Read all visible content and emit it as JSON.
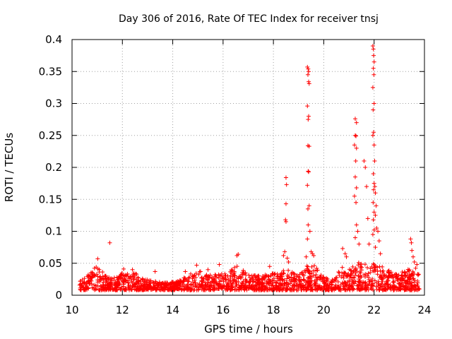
{
  "chart_data": {
    "type": "scatter",
    "title": "Day 306 of 2016, Rate Of TEC Index for receiver tnsj",
    "xlabel": "GPS time / hours",
    "ylabel": "ROTI / TECUs",
    "xlim": [
      10,
      24
    ],
    "ylim": [
      0,
      0.4
    ],
    "grid": true,
    "marker": "+",
    "series": [
      {
        "name": "ROTI",
        "color": "#ff0000",
        "points": [
          [
            11.5,
            0.082
          ],
          [
            11.02,
            0.057
          ],
          [
            12.05,
            0.041
          ],
          [
            12.4,
            0.04
          ],
          [
            13.3,
            0.037
          ],
          [
            14.5,
            0.037
          ],
          [
            14.95,
            0.047
          ],
          [
            15.4,
            0.04
          ],
          [
            15.85,
            0.048
          ],
          [
            16.6,
            0.064
          ],
          [
            16.55,
            0.062
          ],
          [
            17.85,
            0.045
          ],
          [
            18.5,
            0.184
          ],
          [
            18.52,
            0.173
          ],
          [
            18.5,
            0.143
          ],
          [
            18.48,
            0.118
          ],
          [
            18.5,
            0.115
          ],
          [
            18.45,
            0.068
          ],
          [
            18.4,
            0.062
          ],
          [
            18.55,
            0.058
          ],
          [
            18.6,
            0.052
          ],
          [
            19.35,
            0.357
          ],
          [
            19.38,
            0.354
          ],
          [
            19.4,
            0.35
          ],
          [
            19.37,
            0.345
          ],
          [
            19.4,
            0.334
          ],
          [
            19.42,
            0.331
          ],
          [
            19.35,
            0.296
          ],
          [
            19.4,
            0.28
          ],
          [
            19.38,
            0.275
          ],
          [
            19.37,
            0.234
          ],
          [
            19.42,
            0.233
          ],
          [
            19.38,
            0.194
          ],
          [
            19.4,
            0.193
          ],
          [
            19.35,
            0.172
          ],
          [
            19.42,
            0.14
          ],
          [
            19.37,
            0.135
          ],
          [
            19.38,
            0.11
          ],
          [
            19.45,
            0.1
          ],
          [
            19.35,
            0.088
          ],
          [
            19.5,
            0.068
          ],
          [
            19.55,
            0.065
          ],
          [
            19.3,
            0.06
          ],
          [
            19.6,
            0.062
          ],
          [
            20.75,
            0.073
          ],
          [
            20.85,
            0.065
          ],
          [
            20.9,
            0.06
          ],
          [
            21.25,
            0.276
          ],
          [
            21.3,
            0.27
          ],
          [
            21.25,
            0.25
          ],
          [
            21.28,
            0.249
          ],
          [
            21.22,
            0.235
          ],
          [
            21.3,
            0.23
          ],
          [
            21.27,
            0.21
          ],
          [
            21.25,
            0.185
          ],
          [
            21.3,
            0.168
          ],
          [
            21.22,
            0.155
          ],
          [
            21.28,
            0.145
          ],
          [
            21.3,
            0.11
          ],
          [
            21.35,
            0.1
          ],
          [
            21.25,
            0.09
          ],
          [
            21.4,
            0.08
          ],
          [
            21.6,
            0.21
          ],
          [
            21.65,
            0.2
          ],
          [
            21.7,
            0.17
          ],
          [
            21.75,
            0.12
          ],
          [
            21.8,
            0.08
          ],
          [
            21.95,
            0.39
          ],
          [
            21.97,
            0.385
          ],
          [
            21.98,
            0.375
          ],
          [
            22.0,
            0.365
          ],
          [
            21.97,
            0.355
          ],
          [
            21.99,
            0.345
          ],
          [
            21.95,
            0.325
          ],
          [
            21.96,
            0.29
          ],
          [
            22.0,
            0.3
          ],
          [
            21.98,
            0.255
          ],
          [
            21.95,
            0.25
          ],
          [
            22.0,
            0.235
          ],
          [
            22.02,
            0.21
          ],
          [
            21.97,
            0.19
          ],
          [
            22.0,
            0.175
          ],
          [
            22.03,
            0.17
          ],
          [
            21.98,
            0.165
          ],
          [
            22.05,
            0.16
          ],
          [
            21.96,
            0.145
          ],
          [
            22.08,
            0.14
          ],
          [
            22.0,
            0.13
          ],
          [
            22.05,
            0.125
          ],
          [
            21.97,
            0.118
          ],
          [
            22.1,
            0.105
          ],
          [
            22.0,
            0.102
          ],
          [
            22.15,
            0.1
          ],
          [
            21.95,
            0.095
          ],
          [
            22.2,
            0.085
          ],
          [
            22.05,
            0.075
          ],
          [
            22.25,
            0.065
          ],
          [
            23.45,
            0.088
          ],
          [
            23.48,
            0.082
          ],
          [
            23.5,
            0.07
          ],
          [
            23.55,
            0.06
          ],
          [
            23.6,
            0.052
          ],
          [
            23.7,
            0.048
          ]
        ],
        "band": [
          [
            10.3,
            0.035
          ],
          [
            10.6,
            0.034
          ],
          [
            11.0,
            0.046
          ],
          [
            11.3,
            0.035
          ],
          [
            11.6,
            0.026
          ],
          [
            12.0,
            0.036
          ],
          [
            12.4,
            0.038
          ],
          [
            12.8,
            0.026
          ],
          [
            13.3,
            0.022
          ],
          [
            13.8,
            0.02
          ],
          [
            14.2,
            0.022
          ],
          [
            14.5,
            0.03
          ],
          [
            15.0,
            0.04
          ],
          [
            15.4,
            0.032
          ],
          [
            15.8,
            0.036
          ],
          [
            16.2,
            0.035
          ],
          [
            16.6,
            0.05
          ],
          [
            17.0,
            0.032
          ],
          [
            17.5,
            0.03
          ],
          [
            17.9,
            0.035
          ],
          [
            18.3,
            0.034
          ],
          [
            18.5,
            0.05
          ],
          [
            18.9,
            0.03
          ],
          [
            19.3,
            0.045
          ],
          [
            19.6,
            0.05
          ],
          [
            20.0,
            0.028
          ],
          [
            20.4,
            0.025
          ],
          [
            20.8,
            0.05
          ],
          [
            21.0,
            0.04
          ],
          [
            21.4,
            0.052
          ],
          [
            21.8,
            0.048
          ],
          [
            22.1,
            0.05
          ],
          [
            22.5,
            0.04
          ],
          [
            22.9,
            0.035
          ],
          [
            23.3,
            0.04
          ],
          [
            23.6,
            0.045
          ],
          [
            23.8,
            0.042
          ]
        ]
      }
    ],
    "xticks": [
      10,
      12,
      14,
      16,
      18,
      20,
      22,
      24
    ],
    "yticks": [
      0,
      0.05,
      0.1,
      0.15,
      0.2,
      0.25,
      0.3,
      0.35,
      0.4
    ],
    "xtick_labels": [
      "10",
      "12",
      "14",
      "16",
      "18",
      "20",
      "22",
      "24"
    ],
    "ytick_labels": [
      "0",
      "0.05",
      "0.1",
      "0.15",
      "0.2",
      "0.25",
      "0.3",
      "0.35",
      "0.4"
    ]
  }
}
